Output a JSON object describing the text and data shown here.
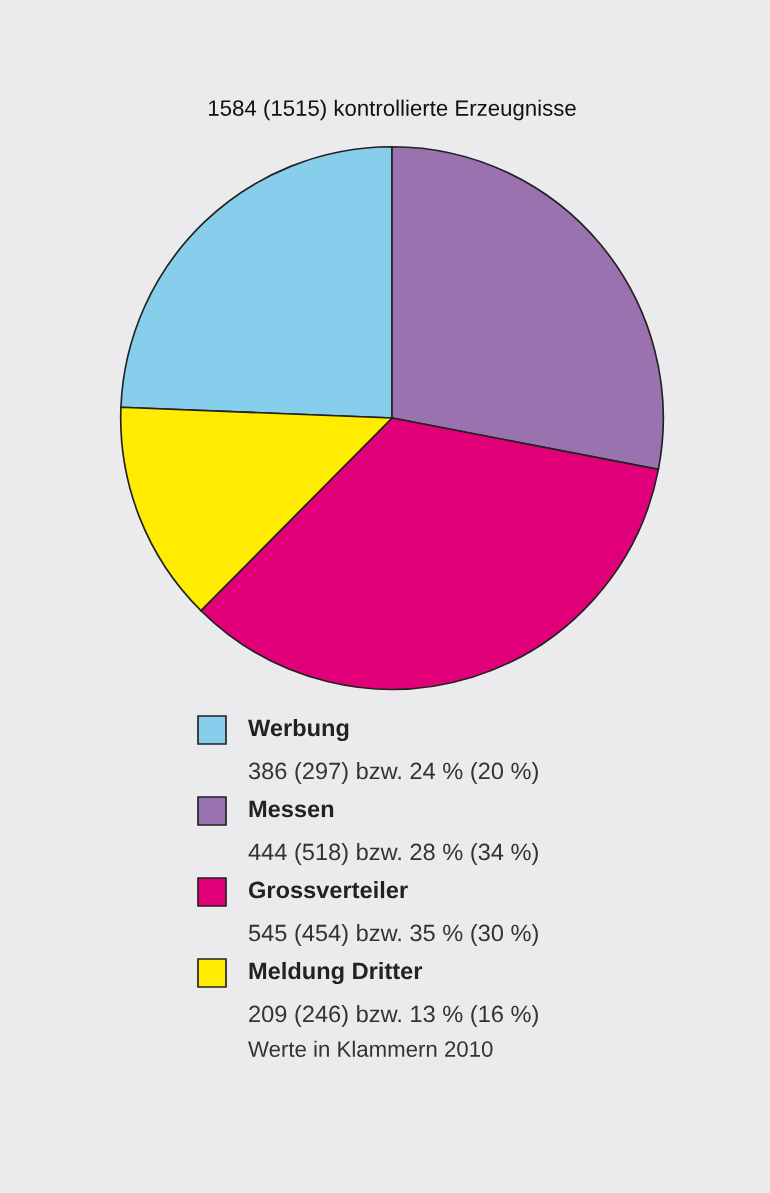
{
  "chart_data": {
    "type": "pie",
    "title": "1584 (1515) kontrollierte Erzeugnisse",
    "categories": [
      "Werbung",
      "Messen",
      "Grossverteiler",
      "Meldung Dritter"
    ],
    "values": [
      386,
      444,
      545,
      209
    ],
    "colors": [
      "#87ceec",
      "#9b72b0",
      "#e2007a",
      "#ffec00"
    ],
    "value_labels": [
      "386 (297) bzw. 24 % (20 %)",
      "444 (518) bzw. 28 % (34 %)",
      "545 (454) bzw. 35 % (30 %)",
      "209 (246) bzw. 13 % (16 %)"
    ],
    "legend": "bottom",
    "annotations": [
      "Werte in Klammern 2010"
    ]
  }
}
